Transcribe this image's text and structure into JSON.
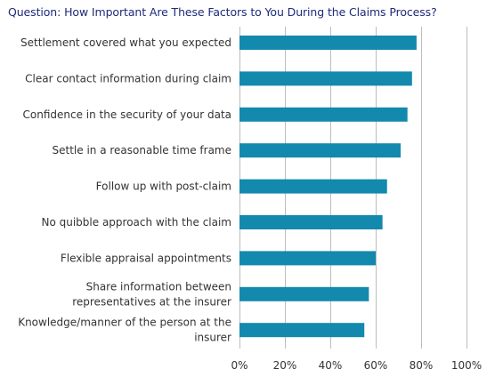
{
  "chart_data": {
    "type": "bar",
    "orientation": "horizontal",
    "title": "Question: How Important Are These Factors to You During the Claims Process?",
    "categories": [
      "Settlement covered what you expected",
      "Clear contact information during claim",
      "Confidence in the security of your data",
      "Settle in a reasonable time frame",
      "Follow up with post-claim",
      "No quibble approach with the claim",
      "Flexible appraisal appointments",
      "Share information between representatives at the insurer",
      "Knowledge/manner of the person at the insurer"
    ],
    "category_lines": [
      [
        "Settlement covered what you expected"
      ],
      [
        "Clear contact information during claim"
      ],
      [
        "Confidence in the security of your data"
      ],
      [
        "Settle in a reasonable time frame"
      ],
      [
        "Follow up with post-claim"
      ],
      [
        "No quibble approach with the claim"
      ],
      [
        "Flexible appraisal appointments"
      ],
      [
        "Share information between",
        "representatives at the insurer"
      ],
      [
        "Knowledge/manner of the person at the",
        "insurer"
      ]
    ],
    "values": [
      0.78,
      0.76,
      0.74,
      0.71,
      0.65,
      0.63,
      0.6,
      0.57,
      0.55
    ],
    "xlim": [
      0,
      1
    ],
    "x_ticks": [
      0,
      0.2,
      0.4,
      0.6,
      0.8,
      1.0
    ],
    "x_tick_labels": [
      "0%",
      "20%",
      "40%",
      "60%",
      "80%",
      "100%"
    ],
    "grid": true,
    "colors": {
      "bar": "#1389ad",
      "title": "#1f2a7a",
      "gridline": "#bdbdbd",
      "text": "#333333"
    }
  }
}
